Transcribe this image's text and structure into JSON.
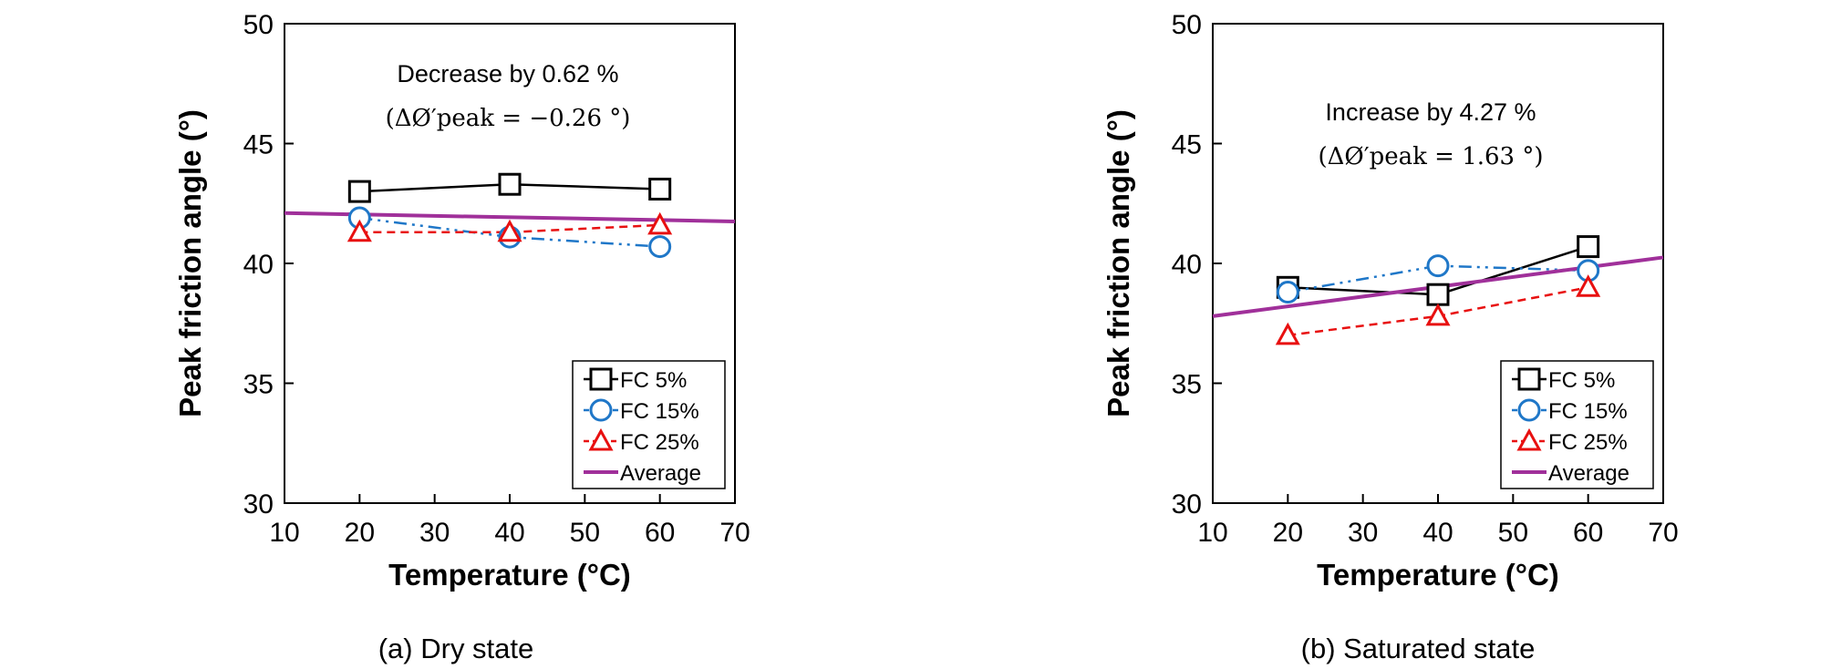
{
  "chart_data": [
    {
      "type": "line",
      "caption": "(a) Dry state",
      "xlabel": "Temperature (°C)",
      "ylabel": "Peak friction angle (°)",
      "xlim": [
        10,
        70
      ],
      "ylim": [
        30,
        50
      ],
      "xticks": [
        10,
        20,
        30,
        40,
        50,
        60,
        70
      ],
      "yticks": [
        30,
        35,
        40,
        45,
        50
      ],
      "grid": false,
      "legend_position": "bottom-right",
      "annotation_line1": "Decrease by 0.62 %",
      "annotation_line2": "(ΔØ′peak = −0.26 °)",
      "series": [
        {
          "name": "FC 5%",
          "x": [
            20,
            40,
            60
          ],
          "y": [
            43.0,
            43.3,
            43.1
          ],
          "color": "#000000",
          "marker": "square",
          "dash": "solid"
        },
        {
          "name": "FC 15%",
          "x": [
            20,
            40,
            60
          ],
          "y": [
            41.9,
            41.1,
            40.7
          ],
          "color": "#1f77c8",
          "marker": "circle",
          "dash": "dashdotdot"
        },
        {
          "name": "FC 25%",
          "x": [
            20,
            40,
            60
          ],
          "y": [
            41.3,
            41.3,
            41.6
          ],
          "color": "#e81010",
          "marker": "triangle",
          "dash": "dash"
        },
        {
          "name": "Average",
          "x": [
            10,
            70
          ],
          "y": [
            42.1,
            41.75
          ],
          "color": "#a0309a",
          "marker": "none",
          "dash": "solid"
        }
      ]
    },
    {
      "type": "line",
      "caption": "(b) Saturated state",
      "xlabel": "Temperature (°C)",
      "ylabel": "Peak friction angle (°)",
      "xlim": [
        10,
        70
      ],
      "ylim": [
        30,
        50
      ],
      "xticks": [
        10,
        20,
        30,
        40,
        50,
        60,
        70
      ],
      "yticks": [
        30,
        35,
        40,
        45,
        50
      ],
      "grid": false,
      "legend_position": "bottom-right",
      "annotation_line1": "Increase by 4.27 %",
      "annotation_line2": "(ΔØ′peak = 1.63 °)",
      "series": [
        {
          "name": "FC 5%",
          "x": [
            20,
            40,
            60
          ],
          "y": [
            39.0,
            38.7,
            40.7
          ],
          "color": "#000000",
          "marker": "square",
          "dash": "solid"
        },
        {
          "name": "FC 15%",
          "x": [
            20,
            40,
            60
          ],
          "y": [
            38.8,
            39.9,
            39.7
          ],
          "color": "#1f77c8",
          "marker": "circle",
          "dash": "dashdotdot"
        },
        {
          "name": "FC 25%",
          "x": [
            20,
            40,
            60
          ],
          "y": [
            37.0,
            37.8,
            39.0
          ],
          "color": "#e81010",
          "marker": "triangle",
          "dash": "dash"
        },
        {
          "name": "Average",
          "x": [
            10,
            70
          ],
          "y": [
            37.8,
            40.25
          ],
          "color": "#a0309a",
          "marker": "none",
          "dash": "solid"
        }
      ]
    }
  ]
}
